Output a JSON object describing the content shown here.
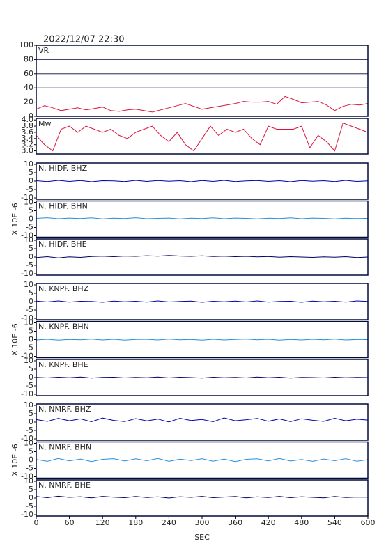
{
  "chart_data": [
    {
      "type": "line",
      "title": "2022/12/07  22:30",
      "label": "VR",
      "color": "#dc143c",
      "x": [
        0,
        15,
        30,
        45,
        60,
        75,
        90,
        105,
        120,
        135,
        150,
        165,
        180,
        195,
        210,
        225,
        240,
        255,
        270,
        285,
        300,
        315,
        330,
        345,
        360,
        375,
        390,
        405,
        420,
        435,
        450,
        465,
        480,
        495,
        510,
        525,
        540,
        555,
        570,
        585,
        600
      ],
      "values": [
        10,
        15,
        12,
        8,
        10,
        12,
        9,
        11,
        13,
        8,
        7,
        9,
        10,
        8,
        6,
        9,
        12,
        15,
        18,
        14,
        10,
        12,
        14,
        16,
        18,
        21,
        20,
        20,
        21,
        17,
        28,
        24,
        19,
        20,
        21,
        16,
        8,
        14,
        17,
        16,
        18
      ],
      "ylim": [
        0,
        100
      ],
      "yticks": [
        0,
        20,
        40,
        60,
        80,
        100
      ],
      "grid": true
    },
    {
      "type": "line",
      "label": "Mw",
      "color": "#dc143c",
      "x": [
        0,
        15,
        30,
        45,
        60,
        75,
        90,
        105,
        120,
        135,
        150,
        165,
        180,
        195,
        210,
        225,
        240,
        255,
        270,
        285,
        300,
        315,
        330,
        345,
        360,
        375,
        390,
        405,
        420,
        435,
        450,
        465,
        480,
        495,
        510,
        525,
        540,
        555,
        570,
        585,
        600
      ],
      "values": [
        3.5,
        3.2,
        3.0,
        3.7,
        3.8,
        3.6,
        3.8,
        3.7,
        3.6,
        3.7,
        3.5,
        3.4,
        3.6,
        3.7,
        3.8,
        3.5,
        3.3,
        3.6,
        3.2,
        3.0,
        3.4,
        3.8,
        3.5,
        3.7,
        3.6,
        3.7,
        3.4,
        3.2,
        3.8,
        3.7,
        3.7,
        3.7,
        3.8,
        3.1,
        3.5,
        3.3,
        3.0,
        3.9,
        3.8,
        3.7,
        3.6
      ],
      "ylim": [
        2.9,
        4.05
      ],
      "yticks": [
        {
          "value": 3,
          "label": "3.0"
        },
        3.2,
        3.4,
        3.6,
        3.8,
        {
          "value": 4,
          "label": "4.0"
        }
      ]
    },
    {
      "type": "line",
      "label": "N. HIDF. BHZ",
      "color": "#0000b0",
      "x": [
        0,
        20,
        40,
        60,
        80,
        100,
        120,
        140,
        160,
        180,
        200,
        220,
        240,
        260,
        280,
        300,
        320,
        340,
        360,
        380,
        400,
        420,
        440,
        460,
        480,
        500,
        520,
        540,
        560,
        580,
        600
      ],
      "values": [
        0.2,
        -0.3,
        0.4,
        -0.2,
        0.3,
        -0.4,
        0.2,
        0.1,
        -0.3,
        0.4,
        -0.2,
        0.3,
        -0.1,
        0.2,
        -0.4,
        0.3,
        -0.2,
        0.4,
        -0.3,
        0.1,
        0.3,
        -0.2,
        0.2,
        -0.4,
        0.3,
        -0.1,
        0.2,
        -0.3,
        0.4,
        -0.2,
        0.1
      ],
      "ylim": [
        -10,
        10
      ],
      "yticks": [
        -10,
        -5,
        0,
        5,
        10
      ]
    },
    {
      "type": "line",
      "label": "N. HIDF. BHN",
      "color": "#2a8fd8",
      "ylabel": "X 10E -6",
      "x": [
        0,
        20,
        40,
        60,
        80,
        100,
        120,
        140,
        160,
        180,
        200,
        220,
        240,
        260,
        280,
        300,
        320,
        340,
        360,
        380,
        400,
        420,
        440,
        460,
        480,
        500,
        520,
        540,
        560,
        580,
        600
      ],
      "values": [
        0.4,
        0.8,
        0.2,
        0.6,
        0.3,
        0.7,
        0.1,
        0.5,
        0.3,
        0.8,
        0.2,
        0.4,
        0.6,
        0.1,
        0.5,
        0.3,
        0.7,
        0.2,
        0.6,
        0.4,
        0.1,
        0.5,
        0.3,
        0.7,
        0.2,
        0.6,
        0.4,
        0.1,
        0.5,
        0.3,
        0.4
      ],
      "ylim": [
        -10,
        10
      ],
      "yticks": [
        -10,
        -5,
        0,
        5,
        10
      ]
    },
    {
      "type": "line",
      "label": "N. HIDF. BHE",
      "color": "#000066",
      "x": [
        0,
        20,
        40,
        60,
        80,
        100,
        120,
        140,
        160,
        180,
        200,
        220,
        240,
        260,
        280,
        300,
        320,
        340,
        360,
        380,
        400,
        420,
        440,
        460,
        480,
        500,
        520,
        540,
        560,
        580,
        600
      ],
      "values": [
        -0.3,
        0.2,
        -0.5,
        0.1,
        -0.2,
        0.3,
        0.5,
        0.2,
        0.6,
        0.4,
        0.8,
        0.5,
        0.9,
        0.6,
        0.4,
        0.7,
        0.3,
        0.5,
        0.2,
        0.4,
        0.1,
        0.3,
        -0.1,
        0.2,
        0.0,
        -0.2,
        0.1,
        -0.1,
        0.2,
        -0.3,
        0.0
      ],
      "ylim": [
        -10,
        10
      ],
      "yticks": [
        -10,
        -5,
        0,
        5,
        10
      ]
    },
    {
      "type": "line",
      "label": "N. KNPF. BHZ",
      "color": "#0000b0",
      "x": [
        0,
        20,
        40,
        60,
        80,
        100,
        120,
        140,
        160,
        180,
        200,
        220,
        240,
        260,
        280,
        300,
        320,
        340,
        360,
        380,
        400,
        420,
        440,
        460,
        480,
        500,
        520,
        540,
        560,
        580,
        600
      ],
      "values": [
        0.3,
        -0.2,
        0.4,
        -0.3,
        0.2,
        0.1,
        -0.4,
        0.3,
        -0.1,
        0.2,
        -0.3,
        0.4,
        -0.2,
        0.1,
        0.3,
        -0.4,
        0.2,
        -0.1,
        0.3,
        -0.2,
        0.4,
        -0.3,
        0.1,
        0.2,
        -0.4,
        0.3,
        -0.1,
        0.2,
        -0.3,
        0.4,
        0.1
      ],
      "ylim": [
        -10,
        10
      ],
      "yticks": [
        -10,
        -5,
        0,
        5,
        10
      ]
    },
    {
      "type": "line",
      "label": "N. KNPF. BHN",
      "color": "#2a8fd8",
      "ylabel": "X 10E -6",
      "x": [
        0,
        20,
        40,
        60,
        80,
        100,
        120,
        140,
        160,
        180,
        200,
        220,
        240,
        260,
        280,
        300,
        320,
        340,
        360,
        380,
        400,
        420,
        440,
        460,
        480,
        500,
        520,
        540,
        560,
        580,
        600
      ],
      "values": [
        -0.2,
        0.2,
        -0.3,
        0.1,
        -0.1,
        0.3,
        -0.2,
        0.2,
        -0.3,
        0.1,
        0.2,
        -0.2,
        0.3,
        -0.1,
        0.1,
        -0.3,
        0.2,
        -0.2,
        0.1,
        0.3,
        -0.1,
        0.2,
        -0.3,
        0.1,
        -0.2,
        0.2,
        -0.1,
        0.3,
        -0.2,
        0.1,
        0.0
      ],
      "ylim": [
        -10,
        10
      ],
      "yticks": [
        -10,
        -5,
        0,
        5,
        10
      ]
    },
    {
      "type": "line",
      "label": "N. KNPF. BHE",
      "color": "#000066",
      "x": [
        0,
        20,
        40,
        60,
        80,
        100,
        120,
        140,
        160,
        180,
        200,
        220,
        240,
        260,
        280,
        300,
        320,
        340,
        360,
        380,
        400,
        420,
        440,
        460,
        480,
        500,
        520,
        540,
        560,
        580,
        600
      ],
      "values": [
        0.1,
        -0.2,
        0.2,
        -0.1,
        0.3,
        -0.3,
        0.1,
        0.2,
        -0.2,
        0.1,
        -0.1,
        0.3,
        -0.2,
        0.2,
        0.0,
        -0.3,
        0.2,
        -0.1,
        0.1,
        -0.2,
        0.3,
        -0.1,
        0.2,
        -0.3,
        0.1,
        0.0,
        -0.2,
        0.2,
        -0.1,
        0.1,
        0.0
      ],
      "ylim": [
        -10,
        10
      ],
      "yticks": [
        -10,
        -5,
        0,
        5,
        10
      ]
    },
    {
      "type": "line",
      "label": "N. NMRF. BHZ",
      "color": "#0000b0",
      "x": [
        0,
        20,
        40,
        60,
        80,
        100,
        120,
        140,
        160,
        180,
        200,
        220,
        240,
        260,
        280,
        300,
        320,
        340,
        360,
        380,
        400,
        420,
        440,
        460,
        480,
        500,
        520,
        540,
        560,
        580,
        600
      ],
      "values": [
        1.5,
        0.4,
        2.2,
        0.8,
        1.9,
        0.2,
        2.4,
        1.0,
        0.3,
        2.1,
        0.7,
        1.8,
        0.1,
        2.3,
        0.9,
        1.6,
        0.2,
        2.5,
        0.8,
        1.4,
        2.2,
        0.5,
        1.9,
        0.3,
        2.0,
        1.1,
        0.4,
        2.3,
        0.8,
        1.7,
        1.2
      ],
      "ylim": [
        -10,
        10
      ],
      "yticks": [
        -10,
        -5,
        0,
        5,
        10
      ]
    },
    {
      "type": "line",
      "label": "N. NMRF. BHN",
      "color": "#2a8fd8",
      "ylabel": "X 10E -6",
      "x": [
        0,
        20,
        40,
        60,
        80,
        100,
        120,
        140,
        160,
        180,
        200,
        220,
        240,
        260,
        280,
        300,
        320,
        340,
        360,
        380,
        400,
        420,
        440,
        460,
        480,
        500,
        520,
        540,
        560,
        580,
        600
      ],
      "values": [
        0.3,
        -0.8,
        0.9,
        -0.5,
        0.6,
        -0.9,
        0.4,
        0.8,
        -0.6,
        0.7,
        -0.4,
        0.9,
        -0.8,
        0.5,
        -0.3,
        0.8,
        -0.7,
        0.6,
        -0.9,
        0.4,
        0.7,
        -0.5,
        0.9,
        -0.6,
        0.3,
        -0.8,
        0.6,
        -0.4,
        0.8,
        -0.7,
        0.2
      ],
      "ylim": [
        -10,
        10
      ],
      "yticks": [
        -10,
        -5,
        0,
        5,
        10
      ]
    },
    {
      "type": "line",
      "label": "N. NMRF. BHE",
      "color": "#000066",
      "xlabel": "SEC",
      "x": [
        0,
        20,
        40,
        60,
        80,
        100,
        120,
        140,
        160,
        180,
        200,
        220,
        240,
        260,
        280,
        300,
        320,
        340,
        360,
        380,
        400,
        420,
        440,
        460,
        480,
        500,
        520,
        540,
        560,
        580,
        600
      ],
      "values": [
        0.9,
        0.2,
        1.1,
        0.4,
        0.8,
        0.1,
        1.0,
        0.5,
        0.2,
        0.9,
        0.3,
        0.7,
        0.0,
        0.8,
        0.4,
        1.0,
        0.2,
        0.6,
        0.9,
        0.1,
        0.7,
        0.3,
        1.0,
        0.2,
        0.8,
        0.4,
        0.1,
        0.9,
        0.3,
        0.6,
        0.5
      ],
      "ylim": [
        -10,
        10
      ],
      "yticks": [
        -10,
        -5,
        0,
        5,
        10
      ],
      "xlim": [
        0,
        600
      ],
      "xticks": [
        0,
        60,
        120,
        180,
        240,
        300,
        360,
        420,
        480,
        540,
        600
      ]
    }
  ]
}
